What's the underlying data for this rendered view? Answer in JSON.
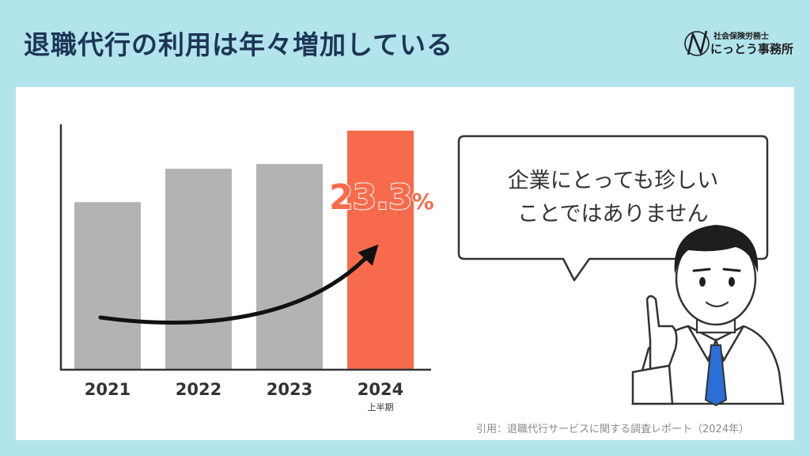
{
  "header": {
    "title": "退職代行の利用は年々増加している",
    "logo_line1": "社会保険労務士",
    "logo_line2": "にっとう事務所"
  },
  "chart_data": {
    "type": "bar",
    "categories": [
      "2021",
      "2022",
      "2023",
      "2024"
    ],
    "category_sublabels": [
      "",
      "",
      "",
      "上半期"
    ],
    "values": [
      70,
      84,
      86,
      100
    ],
    "highlight_index": 3,
    "highlight_label": "23.3",
    "highlight_unit": "%",
    "trend_arrow": true,
    "ylim": [
      0,
      100
    ],
    "grid": false,
    "colors": {
      "bar": "#b3b3b3",
      "highlight": "#f76b4c",
      "axis": "#333333"
    }
  },
  "speech_bubble": {
    "line1": "企業にとっても珍しい",
    "line2": "ことではありません"
  },
  "footer": {
    "source": "引用：退職代行サービスに関する調査レポート（2024年）"
  }
}
